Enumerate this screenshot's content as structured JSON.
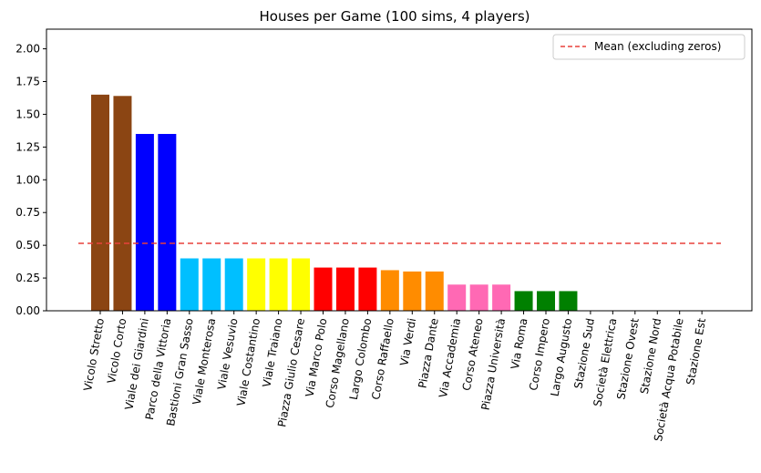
{
  "chart_data": {
    "type": "bar",
    "title": "Houses per Game (100 sims, 4 players)",
    "xlabel": "",
    "ylabel": "",
    "ylim": [
      0,
      2.15
    ],
    "yticks": [
      "0.00",
      "0.25",
      "0.50",
      "0.75",
      "1.00",
      "1.25",
      "1.50",
      "1.75",
      "2.00"
    ],
    "grid": false,
    "legend_position": "top-right",
    "categories": [
      "Vicolo Stretto",
      "Vicolo Corto",
      "Viale dei Giardini",
      "Parco della Vittoria",
      "Bastioni Gran Sasso",
      "Viale Monterosa",
      "Viale Vesuvio",
      "Viale Costantino",
      "Viale Traiano",
      "Piazza Giulio Cesare",
      "Via Marco Polo",
      "Corso Magellano",
      "Largo Colombo",
      "Corso Raffaello",
      "Via Verdi",
      "Piazza Dante",
      "Via Accademia",
      "Corso Ateneo",
      "Piazza Università",
      "Via Roma",
      "Corso Impero",
      "Largo Augusto",
      "Stazione Sud",
      "Società Elettrica",
      "Stazione Ovest",
      "Stazione Nord",
      "Società Acqua Potabile",
      "Stazione Est"
    ],
    "values": [
      1.65,
      1.64,
      1.35,
      1.35,
      0.4,
      0.4,
      0.4,
      0.4,
      0.4,
      0.4,
      0.33,
      0.33,
      0.33,
      0.31,
      0.3,
      0.3,
      0.2,
      0.2,
      0.2,
      0.15,
      0.15,
      0.15,
      0,
      0,
      0,
      0,
      0,
      0
    ],
    "colors": [
      "#8b4513",
      "#8b4513",
      "#0000ff",
      "#0000ff",
      "#00bfff",
      "#00bfff",
      "#00bfff",
      "#ffff00",
      "#ffff00",
      "#ffff00",
      "#ff0000",
      "#ff0000",
      "#ff0000",
      "#ff8c00",
      "#ff8c00",
      "#ff8c00",
      "#ff69b4",
      "#ff69b4",
      "#ff69b4",
      "#008000",
      "#008000",
      "#008000",
      "#888888",
      "#888888",
      "#888888",
      "#888888",
      "#888888",
      "#888888"
    ],
    "mean_line": {
      "label": "Mean (excluding zeros)",
      "value": 0.515,
      "color": "#e8413c",
      "style": "dashed"
    }
  }
}
